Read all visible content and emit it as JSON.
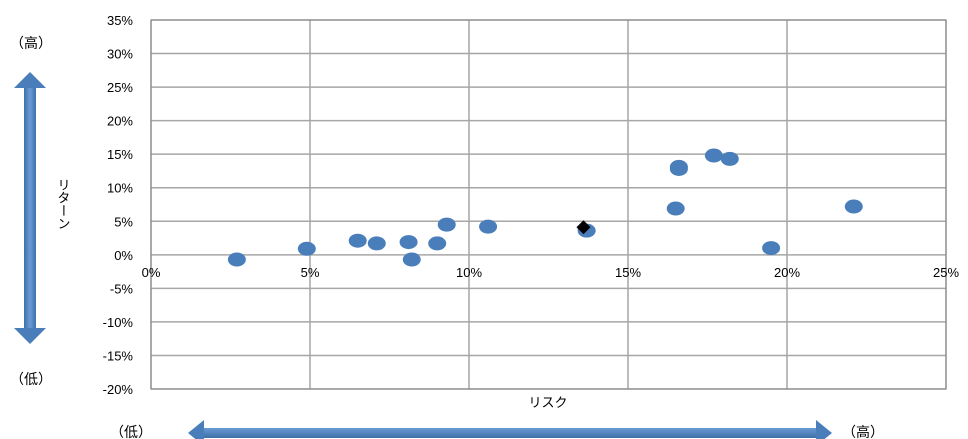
{
  "chart_data": {
    "type": "scatter",
    "xlabel": "リスク",
    "ylabel": "リターン",
    "x_tick_labels": [
      "0%",
      "5%",
      "10%",
      "15%",
      "20%",
      "25%"
    ],
    "y_tick_labels": [
      "35%",
      "30%",
      "25%",
      "20%",
      "15%",
      "10%",
      "5%",
      "0%",
      "-5%",
      "-10%",
      "-15%",
      "-20%"
    ],
    "xlim": [
      0,
      25
    ],
    "ylim": [
      -20,
      35
    ],
    "grid": true,
    "series": [
      {
        "marker": "circle",
        "color": "#4a7ebb",
        "x": [
          2.7,
          4.9,
          6.5,
          7.1,
          8.1,
          8.2,
          9.0,
          9.3,
          10.6,
          13.7,
          16.5,
          16.6,
          16.6,
          17.7,
          18.2,
          19.5,
          22.1
        ],
        "y": [
          -0.7,
          0.9,
          2.1,
          1.7,
          1.9,
          -0.7,
          1.7,
          4.5,
          4.2,
          3.6,
          6.9,
          13.1,
          12.8,
          14.8,
          14.3,
          1.0,
          7.2
        ]
      },
      {
        "marker": "diamond",
        "color": "#000000",
        "x": [
          13.6
        ],
        "y": [
          4.1
        ]
      }
    ]
  },
  "labels": {
    "y_high": "（高）",
    "y_low": "（低）",
    "x_low": "（低）",
    "x_high": "（高）"
  },
  "colors": {
    "arrow": "#4a7ebb",
    "grid": "#a6a6a6",
    "plot_border": "#808080"
  }
}
